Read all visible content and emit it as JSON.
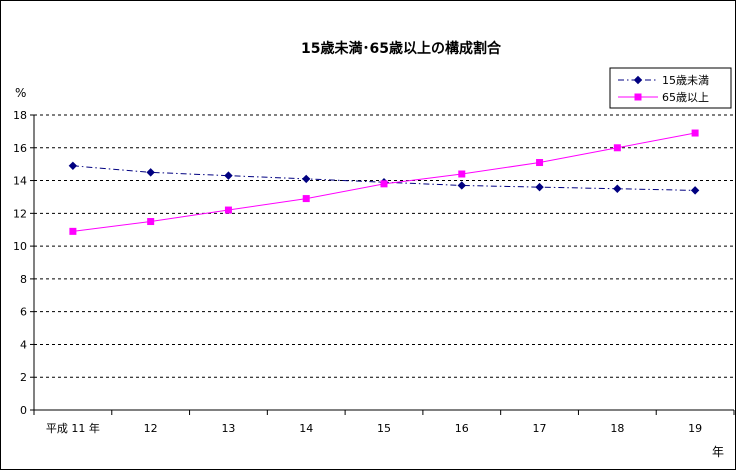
{
  "chart_data": {
    "type": "line",
    "title": "15歳未満･65歳以上の構成割合",
    "ylabel": "%",
    "xlabel_unit": "年",
    "categories": [
      "平成 11 年",
      "12",
      "13",
      "14",
      "15",
      "16",
      "17",
      "18",
      "19"
    ],
    "ylim": [
      0,
      18
    ],
    "yticks": [
      0,
      2,
      4,
      6,
      8,
      10,
      12,
      14,
      16,
      18
    ],
    "grid": true,
    "legend_position": "top-right",
    "series": [
      {
        "name": "15歳未満",
        "values": [
          14.9,
          14.5,
          14.3,
          14.1,
          13.9,
          13.7,
          13.6,
          13.5,
          13.4
        ],
        "color": "#000080",
        "marker": "diamond",
        "line_style": "dash-dot"
      },
      {
        "name": "65歳以上",
        "values": [
          10.9,
          11.5,
          12.2,
          12.9,
          13.8,
          14.4,
          15.1,
          16.0,
          16.9
        ],
        "color": "#ff00ff",
        "marker": "square",
        "line_style": "solid"
      }
    ]
  }
}
